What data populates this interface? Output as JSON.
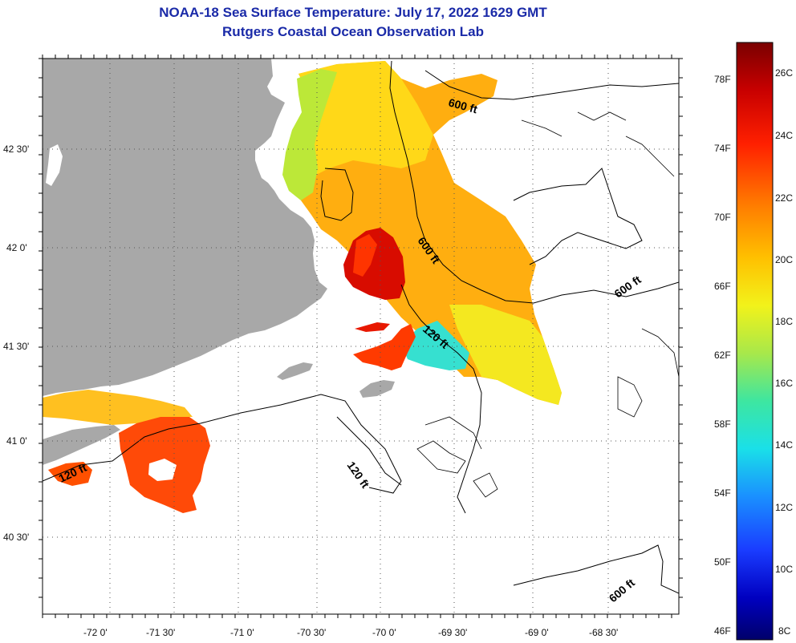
{
  "title": "NOAA-18 Sea Surface Temperature:  July 17, 2022 1629 GMT",
  "subtitle": "Rutgers Coastal Ocean Observation Lab",
  "lat_labels": [
    "42 30'",
    "42 0'",
    "41 30'",
    "41 0'",
    "40 30'"
  ],
  "lon_labels": [
    "-72 0'",
    "-71 30'",
    "-71 0'",
    "-70 30'",
    "-70 0'",
    "-69 30'",
    "-69 0'",
    "-68 30'"
  ],
  "contour_labels": [
    "600 ft",
    "600 ft",
    "600 ft",
    "600 ft",
    "120 ft",
    "120 ft",
    "120 ft"
  ],
  "colorbar": {
    "fahrenheit": [
      "78F",
      "74F",
      "70F",
      "66F",
      "62F",
      "58F",
      "54F",
      "50F",
      "46F"
    ],
    "celsius": [
      "26C",
      "24C",
      "22C",
      "20C",
      "18C",
      "16C",
      "14C",
      "12C",
      "10C",
      "8C"
    ],
    "colors": [
      "#7a0000",
      "#c80000",
      "#ff2000",
      "#ff7a00",
      "#ffc000",
      "#f2f21a",
      "#a8e84a",
      "#3ee6a0",
      "#1ae0e8",
      "#1a90ff",
      "#1a3cff",
      "#0000c0",
      "#00006a"
    ]
  },
  "colors": {
    "land": "#a8a8a8",
    "title": "#1a2aa8"
  }
}
